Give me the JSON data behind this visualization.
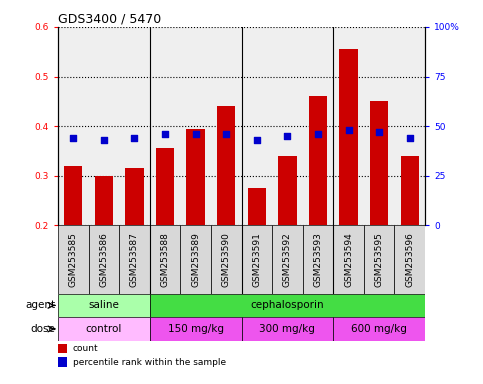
{
  "title": "GDS3400 / 5470",
  "samples": [
    "GSM253585",
    "GSM253586",
    "GSM253587",
    "GSM253588",
    "GSM253589",
    "GSM253590",
    "GSM253591",
    "GSM253592",
    "GSM253593",
    "GSM253594",
    "GSM253595",
    "GSM253596"
  ],
  "count_values": [
    0.32,
    0.3,
    0.315,
    0.355,
    0.395,
    0.44,
    0.275,
    0.34,
    0.46,
    0.555,
    0.45,
    0.34
  ],
  "percentile_values": [
    44,
    43,
    44,
    46,
    46,
    46,
    43,
    45,
    46,
    48,
    47,
    44
  ],
  "ylim_left": [
    0.2,
    0.6
  ],
  "ylim_right": [
    0,
    100
  ],
  "yticks_left": [
    0.2,
    0.3,
    0.4,
    0.5,
    0.6
  ],
  "yticks_right": [
    0,
    25,
    50,
    75,
    100
  ],
  "ytick_labels_right": [
    "0",
    "25",
    "50",
    "75",
    "100%"
  ],
  "bar_color": "#cc0000",
  "dot_color": "#0000cc",
  "bar_width": 0.6,
  "col_bg_color": "#d8d8d8",
  "agent_groups": [
    {
      "label": "saline",
      "start": 0,
      "end": 3,
      "color": "#aaffaa"
    },
    {
      "label": "cephalosporin",
      "start": 3,
      "end": 12,
      "color": "#44dd44"
    }
  ],
  "dose_groups": [
    {
      "label": "control",
      "start": 0,
      "end": 3,
      "color": "#ffbbff"
    },
    {
      "label": "150 mg/kg",
      "start": 3,
      "end": 6,
      "color": "#ee55ee"
    },
    {
      "label": "300 mg/kg",
      "start": 6,
      "end": 9,
      "color": "#ee55ee"
    },
    {
      "label": "600 mg/kg",
      "start": 9,
      "end": 12,
      "color": "#ee55ee"
    }
  ],
  "legend_count_label": "count",
  "legend_pct_label": "percentile rank within the sample",
  "xlabel_agent": "agent",
  "xlabel_dose": "dose",
  "tick_label_fontsize": 6.5,
  "axis_label_fontsize": 7.5,
  "title_fontsize": 9,
  "legend_fontsize": 6.5,
  "group_label_fontsize": 7.5
}
